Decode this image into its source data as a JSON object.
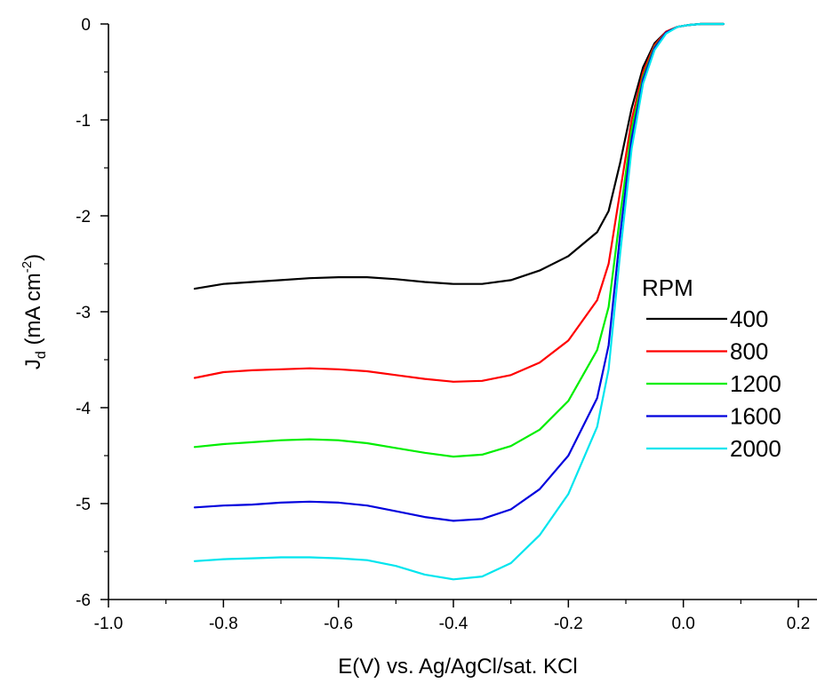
{
  "chart_data": {
    "type": "line",
    "title": "",
    "xlabel": "E(V) vs. Ag/AgCl/sat. KCl",
    "ylabel": {
      "main": "J",
      "sub": "d",
      "unit_open": " (mA cm",
      "unit_sup": "-2",
      "unit_close": ")"
    },
    "xlim": [
      -1.0,
      0.2
    ],
    "ylim": [
      -6,
      0
    ],
    "xticks": [
      "-1.0",
      "-0.8",
      "-0.6",
      "-0.4",
      "-0.2",
      "0.0",
      "0.2"
    ],
    "yticks": [
      "0",
      "-1",
      "-2",
      "-3",
      "-4",
      "-5",
      "-6"
    ],
    "grid": false,
    "legend": {
      "title": "RPM",
      "position": "right"
    },
    "series": [
      {
        "name": "400",
        "color": "#000000",
        "x": [
          -0.85,
          -0.8,
          -0.75,
          -0.7,
          -0.65,
          -0.6,
          -0.55,
          -0.5,
          -0.45,
          -0.4,
          -0.35,
          -0.3,
          -0.25,
          -0.2,
          -0.15,
          -0.13,
          -0.11,
          -0.09,
          -0.07,
          -0.05,
          -0.03,
          -0.01,
          0.01,
          0.03,
          0.05,
          0.07
        ],
        "y": [
          -2.76,
          -2.71,
          -2.69,
          -2.67,
          -2.65,
          -2.64,
          -2.64,
          -2.66,
          -2.69,
          -2.71,
          -2.71,
          -2.67,
          -2.57,
          -2.42,
          -2.17,
          -1.95,
          -1.45,
          -0.88,
          -0.45,
          -0.2,
          -0.08,
          -0.03,
          -0.01,
          0.0,
          0.0,
          0.0
        ]
      },
      {
        "name": "800",
        "color": "#ff0000",
        "x": [
          -0.85,
          -0.8,
          -0.75,
          -0.7,
          -0.65,
          -0.6,
          -0.55,
          -0.5,
          -0.45,
          -0.4,
          -0.35,
          -0.3,
          -0.25,
          -0.2,
          -0.15,
          -0.13,
          -0.11,
          -0.09,
          -0.07,
          -0.05,
          -0.03,
          -0.01,
          0.01,
          0.03,
          0.05,
          0.07
        ],
        "y": [
          -3.69,
          -3.63,
          -3.61,
          -3.6,
          -3.59,
          -3.6,
          -3.62,
          -3.66,
          -3.7,
          -3.73,
          -3.72,
          -3.66,
          -3.53,
          -3.3,
          -2.88,
          -2.5,
          -1.75,
          -1.0,
          -0.5,
          -0.22,
          -0.08,
          -0.03,
          -0.01,
          0.0,
          0.0,
          0.0
        ]
      },
      {
        "name": "1200",
        "color": "#00ee00",
        "x": [
          -0.85,
          -0.8,
          -0.75,
          -0.7,
          -0.65,
          -0.6,
          -0.55,
          -0.5,
          -0.45,
          -0.4,
          -0.35,
          -0.3,
          -0.25,
          -0.2,
          -0.15,
          -0.13,
          -0.11,
          -0.09,
          -0.07,
          -0.05,
          -0.03,
          -0.01,
          0.01,
          0.03,
          0.05,
          0.07
        ],
        "y": [
          -4.41,
          -4.38,
          -4.36,
          -4.34,
          -4.33,
          -4.34,
          -4.37,
          -4.42,
          -4.47,
          -4.51,
          -4.49,
          -4.4,
          -4.23,
          -3.93,
          -3.4,
          -2.95,
          -2.0,
          -1.1,
          -0.55,
          -0.24,
          -0.09,
          -0.03,
          -0.01,
          0.0,
          0.0,
          0.0
        ]
      },
      {
        "name": "1600",
        "color": "#0000dd",
        "x": [
          -0.85,
          -0.8,
          -0.75,
          -0.7,
          -0.65,
          -0.6,
          -0.55,
          -0.5,
          -0.45,
          -0.4,
          -0.35,
          -0.3,
          -0.25,
          -0.2,
          -0.15,
          -0.13,
          -0.11,
          -0.09,
          -0.07,
          -0.05,
          -0.03,
          -0.01,
          0.01,
          0.03,
          0.05,
          0.07
        ],
        "y": [
          -5.04,
          -5.02,
          -5.01,
          -4.99,
          -4.98,
          -4.99,
          -5.02,
          -5.08,
          -5.14,
          -5.18,
          -5.16,
          -5.06,
          -4.85,
          -4.5,
          -3.9,
          -3.35,
          -2.2,
          -1.2,
          -0.58,
          -0.25,
          -0.09,
          -0.03,
          -0.01,
          0.0,
          0.0,
          0.0
        ]
      },
      {
        "name": "2000",
        "color": "#00e5ee",
        "x": [
          -0.85,
          -0.8,
          -0.75,
          -0.7,
          -0.65,
          -0.6,
          -0.55,
          -0.5,
          -0.45,
          -0.4,
          -0.35,
          -0.3,
          -0.25,
          -0.2,
          -0.15,
          -0.13,
          -0.11,
          -0.09,
          -0.07,
          -0.05,
          -0.03,
          -0.01,
          0.01,
          0.03,
          0.05,
          0.07
        ],
        "y": [
          -5.6,
          -5.58,
          -5.57,
          -5.56,
          -5.56,
          -5.57,
          -5.59,
          -5.65,
          -5.74,
          -5.79,
          -5.76,
          -5.62,
          -5.33,
          -4.9,
          -4.2,
          -3.6,
          -2.4,
          -1.3,
          -0.62,
          -0.27,
          -0.1,
          -0.03,
          -0.01,
          0.0,
          0.0,
          0.0
        ]
      }
    ]
  }
}
